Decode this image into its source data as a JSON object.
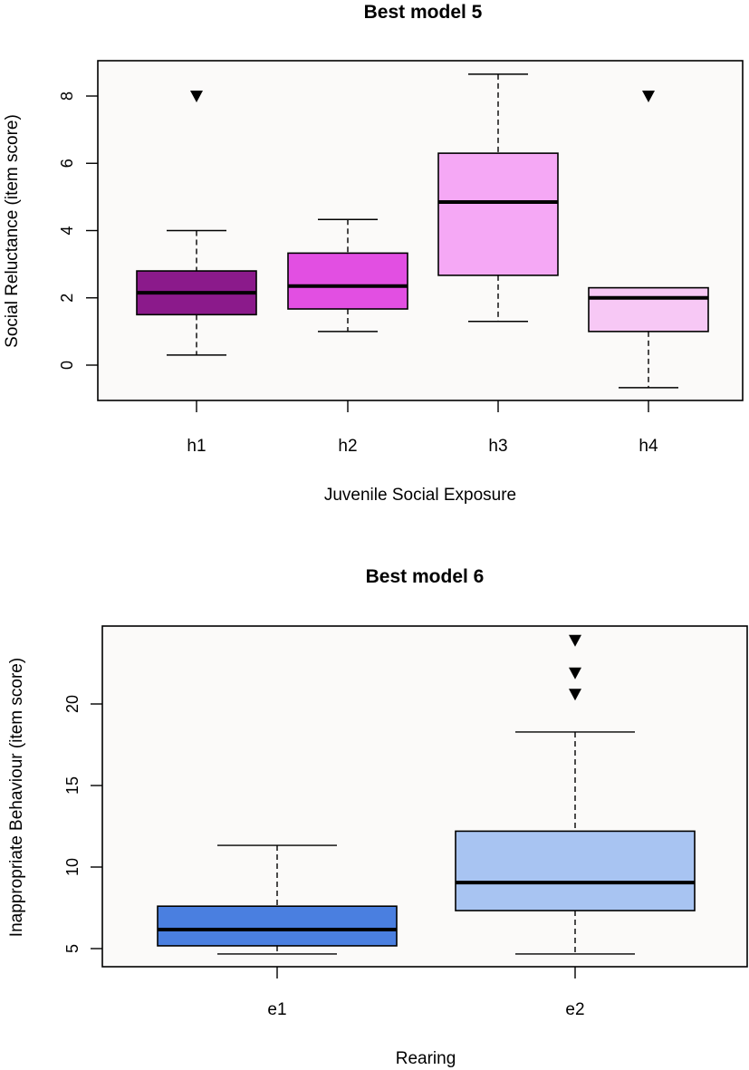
{
  "chart_data": [
    {
      "type": "boxplot",
      "title": "Best model 5",
      "xlabel": "Juvenile Social Exposure",
      "ylabel": "Social Reluctance (item score)",
      "ylim": [
        -1.1,
        9.2
      ],
      "yticks": [
        0,
        2,
        4,
        6,
        8
      ],
      "ytick_labels": [
        "0",
        "2",
        "4",
        "6",
        "8"
      ],
      "categories": [
        "h1",
        "h2",
        "h3",
        "h4"
      ],
      "background": "#fbfaf9",
      "boxes": [
        {
          "category": "h1",
          "whisker_low": 0.3,
          "q1": 1.5,
          "median": 2.15,
          "q3": 2.8,
          "whisker_high": 4.0,
          "outliers": [
            8.0
          ],
          "color": "#8b1a8b"
        },
        {
          "category": "h2",
          "whisker_low": 1.0,
          "q1": 1.67,
          "median": 2.35,
          "q3": 3.33,
          "whisker_high": 4.33,
          "outliers": [],
          "color": "#e24fe2"
        },
        {
          "category": "h3",
          "whisker_low": 1.3,
          "q1": 2.67,
          "median": 4.85,
          "q3": 6.3,
          "whisker_high": 8.65,
          "outliers": [],
          "color": "#f5a8f5"
        },
        {
          "category": "h4",
          "whisker_low": -0.67,
          "q1": 1.0,
          "median": 2.0,
          "q3": 2.3,
          "whisker_high": 2.3,
          "outliers": [
            8.0
          ],
          "color": "#f7c8f5"
        }
      ]
    },
    {
      "type": "boxplot",
      "title": "Best model 6",
      "xlabel": "Rearing",
      "ylabel": "Inappropriate Behaviour (item score)",
      "ylim": [
        3.85,
        24.8
      ],
      "yticks": [
        5,
        10,
        15,
        20
      ],
      "ytick_labels": [
        "5",
        "10",
        "15",
        "20"
      ],
      "categories": [
        "e1",
        "e2"
      ],
      "background": "#fbfaf9",
      "boxes": [
        {
          "category": "e1",
          "whisker_low": 4.67,
          "q1": 5.17,
          "median": 6.17,
          "q3": 7.6,
          "whisker_high": 11.33,
          "outliers": [],
          "color": "#4a7fe0"
        },
        {
          "category": "e2",
          "whisker_low": 4.67,
          "q1": 7.33,
          "median": 9.05,
          "q3": 12.2,
          "whisker_high": 18.28,
          "outliers": [
            20.6,
            21.9,
            23.9
          ],
          "color": "#a8c4f2"
        }
      ]
    }
  ]
}
